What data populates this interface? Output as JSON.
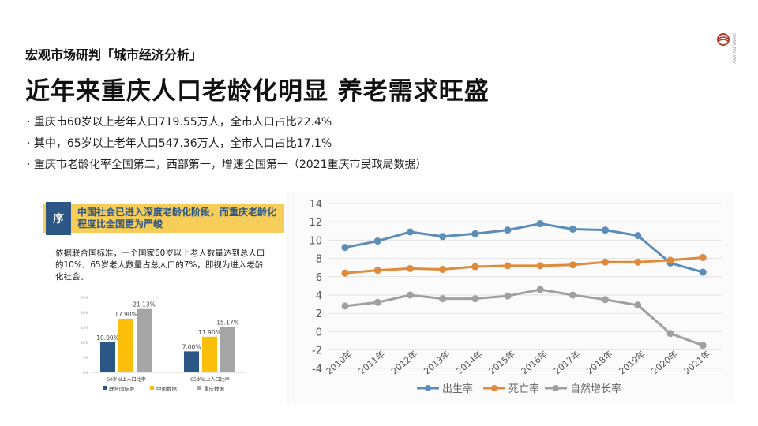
{
  "header": {
    "subtitle": "宏观市场研判「城市经济分析」",
    "title": "近年来重庆人口老龄化明显 养老需求旺盛",
    "bullets": [
      "· 重庆市60岁以上老年人口719.55万人，全市人口占比22.4%",
      "· 其中，65岁以上老年人口547.36万人，全市人口占比17.1%",
      "· 重庆市老龄化率全国第二，西部第一，增速全国第一（2021重庆市民政局数据）"
    ]
  },
  "logo": {
    "text": "CHINA RAILWAY"
  },
  "left_panel": {
    "badge": "序",
    "banner": "中国社会已进入深度老龄化阶段，而重庆老龄化程度比全国更为严峻",
    "description": "依据联合国标准，一个国家60岁以上老人数量达到总人口的10%，65岁老人数量占总人口的7%，即视为进入老龄化社会。"
  },
  "chart_data": [
    {
      "type": "bar",
      "categories": [
        "60岁以上人口比率",
        "65岁以上人口比率"
      ],
      "series": [
        {
          "name": "联合国标准",
          "values": [
            10.0,
            7.0
          ],
          "color": "#2c5685"
        },
        {
          "name": "中国数据",
          "values": [
            17.9,
            11.9
          ],
          "color": "#fbbf0a"
        },
        {
          "name": "重庆数据",
          "values": [
            21.13,
            15.17
          ],
          "color": "#a5a5a5"
        }
      ],
      "yticks": [
        "0%",
        "5%",
        "10%",
        "15%",
        "20%",
        "25%"
      ],
      "ylim": [
        0,
        25
      ],
      "labels": [
        "10.00%",
        "7.00%",
        "17.90%",
        "11.90%",
        "21.13%",
        "15.17%"
      ],
      "legend": "bottom"
    },
    {
      "type": "line",
      "categories": [
        "2010年",
        "2011年",
        "2012年",
        "2013年",
        "2014年",
        "2015年",
        "2016年",
        "2017年",
        "2018年",
        "2019年",
        "2020年",
        "2021年"
      ],
      "series": [
        {
          "name": "出生率",
          "color": "#5b8db8",
          "values": [
            9.2,
            9.9,
            10.9,
            10.4,
            10.7,
            11.1,
            11.8,
            11.2,
            11.1,
            10.5,
            7.5,
            6.5
          ]
        },
        {
          "name": "死亡率",
          "color": "#e08a3c",
          "values": [
            6.4,
            6.7,
            6.9,
            6.8,
            7.1,
            7.2,
            7.2,
            7.3,
            7.6,
            7.6,
            7.8,
            8.1
          ]
        },
        {
          "name": "自然增长率",
          "color": "#a0a0a0",
          "values": [
            2.8,
            3.2,
            4.0,
            3.6,
            3.6,
            3.9,
            4.6,
            4.0,
            3.5,
            2.9,
            -0.2,
            -1.5
          ]
        }
      ],
      "yticks": [
        "-4",
        "-2",
        "0",
        "2",
        "4",
        "6",
        "8",
        "10",
        "12",
        "14"
      ],
      "ylim": [
        -4,
        14
      ],
      "grid": true,
      "legend": "bottom"
    }
  ]
}
